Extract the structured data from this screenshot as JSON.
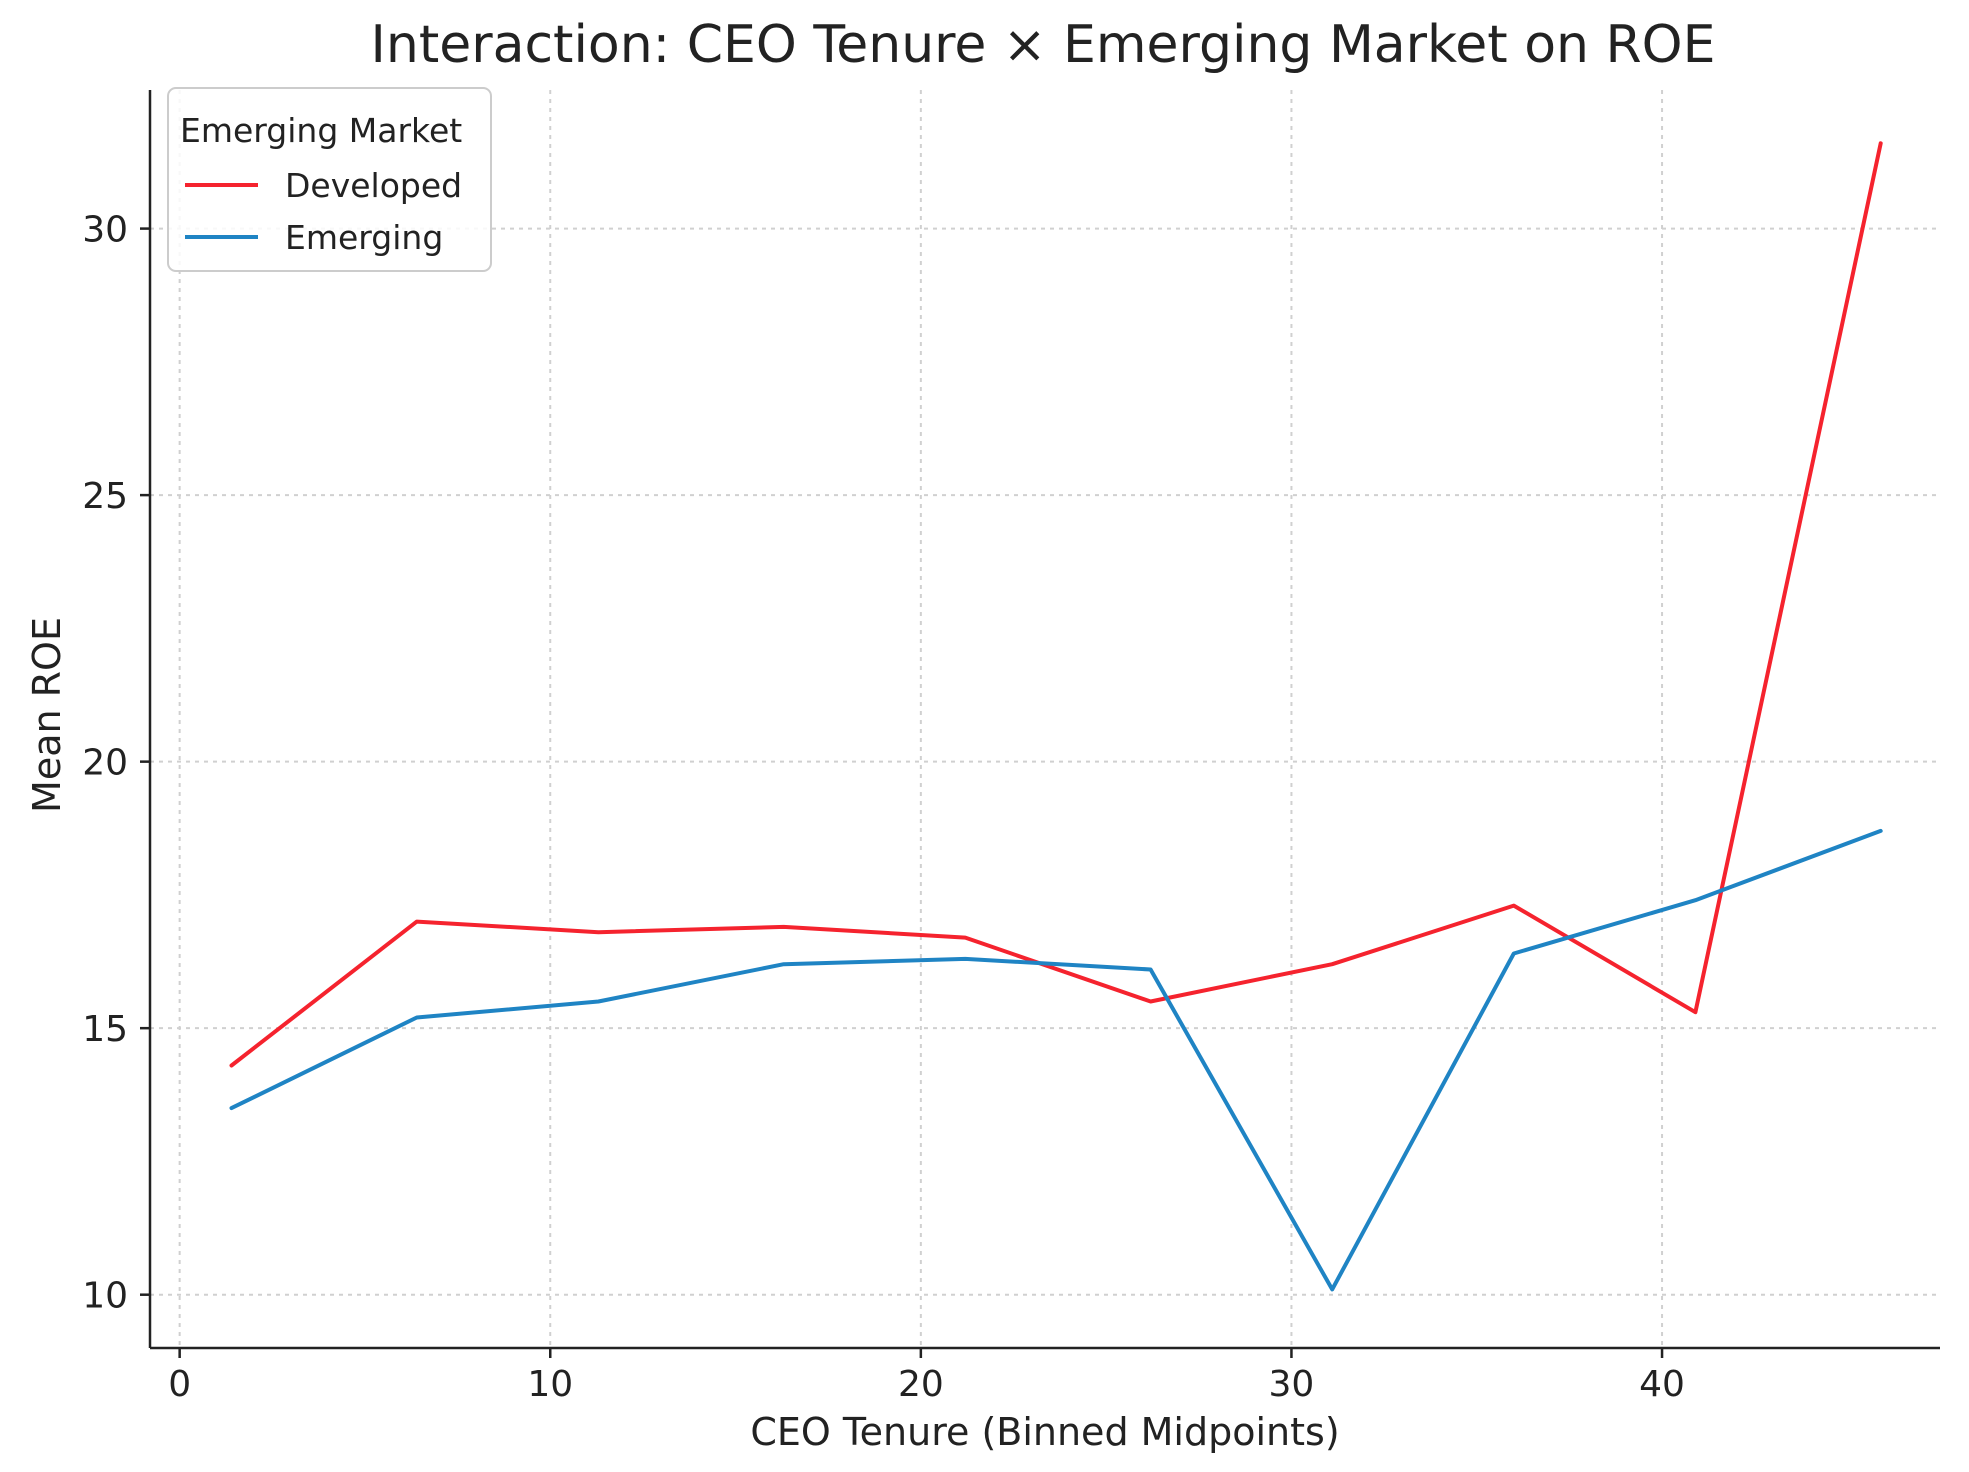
{
  "chart_data": {
    "type": "line",
    "title": "Interaction: CEO Tenure × Emerging Market on ROE",
    "xlabel": "CEO Tenure (Binned Midpoints)",
    "ylabel": "Mean ROE",
    "xlim": [
      -0.8,
      47.5
    ],
    "ylim": [
      9.0,
      32.6
    ],
    "xticks": [
      0,
      10,
      20,
      30,
      40
    ],
    "yticks": [
      10,
      15,
      20,
      25,
      30
    ],
    "grid": true,
    "legend": {
      "title": "Emerging Market",
      "position": "top-left"
    },
    "x": [
      1.4,
      6.4,
      11.3,
      16.3,
      21.2,
      26.2,
      31.1,
      36.0,
      40.9,
      45.9
    ],
    "series": [
      {
        "name": "Developed",
        "color": "#f5232e",
        "values": [
          14.3,
          17.0,
          16.8,
          16.9,
          16.7,
          15.5,
          16.2,
          17.3,
          15.3,
          31.6
        ]
      },
      {
        "name": "Emerging",
        "color": "#1f84c4",
        "values": [
          13.5,
          15.2,
          15.5,
          16.2,
          16.3,
          16.1,
          10.1,
          16.4,
          17.4,
          18.7
        ]
      }
    ]
  }
}
